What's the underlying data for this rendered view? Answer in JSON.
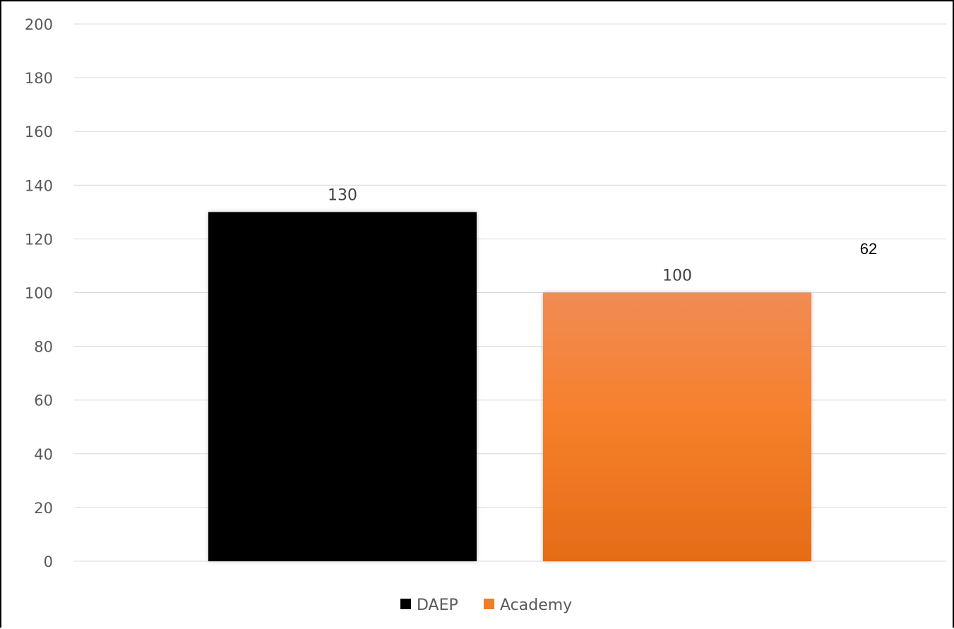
{
  "chart_data": {
    "type": "bar",
    "categories": [
      ""
    ],
    "series": [
      {
        "name": "DAEP",
        "values": [
          130
        ],
        "color": "#000000"
      },
      {
        "name": "Academy",
        "values": [
          100
        ],
        "color": "#f07e26"
      }
    ],
    "data_labels": [
      "130",
      "100"
    ],
    "annotations": [
      "62"
    ],
    "title": "",
    "xlabel": "",
    "ylabel": "",
    "ylim": [
      0,
      200
    ],
    "yticks": [
      0,
      20,
      40,
      60,
      80,
      100,
      120,
      140,
      160,
      180,
      200
    ],
    "grid": true,
    "legend": "bottom"
  }
}
